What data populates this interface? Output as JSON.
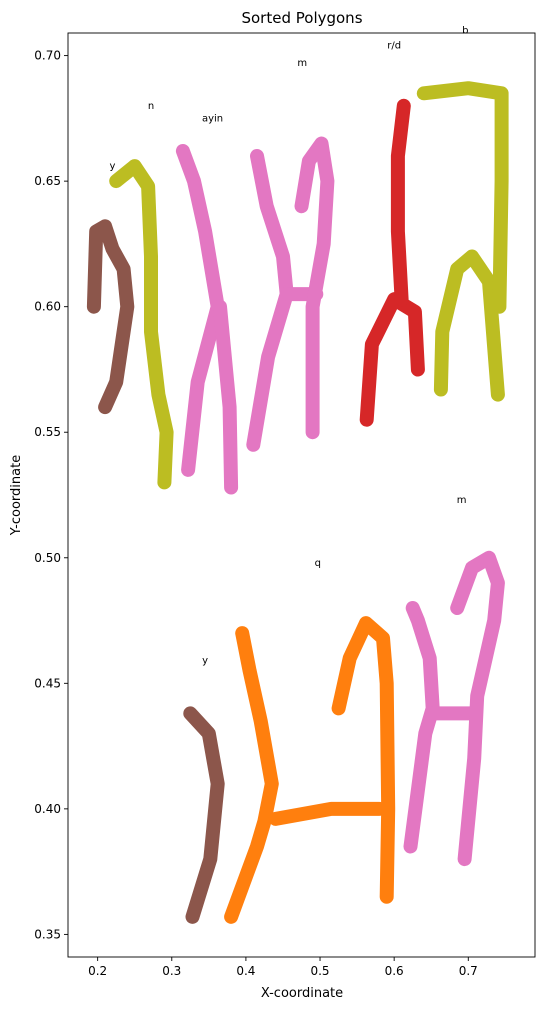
{
  "chart_data": {
    "type": "scatter",
    "title": "Sorted Polygons",
    "xlabel": "X-coordinate",
    "ylabel": "Y-coordinate",
    "xlim": [
      0.16,
      0.79
    ],
    "ylim": [
      0.709,
      0.341
    ],
    "y_inverted": true,
    "grid": false,
    "x_ticks": [
      0.2,
      0.3,
      0.4,
      0.5,
      0.6,
      0.7
    ],
    "x_tick_labels": [
      "0.2",
      "0.3",
      "0.4",
      "0.5",
      "0.6",
      "0.7"
    ],
    "y_ticks": [
      0.35,
      0.4,
      0.45,
      0.5,
      0.55,
      0.6,
      0.65,
      0.7
    ],
    "y_tick_labels": [
      "0.35",
      "0.40",
      "0.45",
      "0.50",
      "0.55",
      "0.60",
      "0.65",
      "0.70"
    ],
    "glyphs": [
      {
        "label": "y",
        "color": "#8c564b",
        "label_pos": [
          0.345,
          0.459
        ],
        "path": [
          [
            0.328,
            0.357
          ],
          [
            0.352,
            0.38
          ],
          [
            0.362,
            0.41
          ],
          [
            0.35,
            0.43
          ],
          [
            0.325,
            0.438
          ]
        ]
      },
      {
        "label": "q",
        "color": "#ff7f0e",
        "label_pos": [
          0.497,
          0.498
        ],
        "path": [
          [
            0.38,
            0.357
          ],
          [
            0.415,
            0.385
          ],
          [
            0.425,
            0.395
          ],
          [
            0.435,
            0.41
          ],
          [
            0.42,
            0.435
          ],
          [
            0.405,
            0.455
          ],
          [
            0.395,
            0.47
          ]
        ]
      },
      {
        "label": "q",
        "color": "#ff7f0e",
        "label_pos": null,
        "path": [
          [
            0.44,
            0.396
          ],
          [
            0.515,
            0.4
          ],
          [
            0.58,
            0.4
          ]
        ]
      },
      {
        "label": "q",
        "color": "#ff7f0e",
        "label_pos": null,
        "path": [
          [
            0.59,
            0.365
          ],
          [
            0.592,
            0.4
          ],
          [
            0.59,
            0.45
          ],
          [
            0.585,
            0.468
          ],
          [
            0.562,
            0.474
          ],
          [
            0.54,
            0.46
          ],
          [
            0.525,
            0.44
          ]
        ]
      },
      {
        "label": "m",
        "color": "#e377c2",
        "label_pos": [
          0.691,
          0.523
        ],
        "path": [
          [
            0.622,
            0.385
          ],
          [
            0.642,
            0.43
          ],
          [
            0.652,
            0.44
          ],
          [
            0.648,
            0.46
          ],
          [
            0.632,
            0.475
          ],
          [
            0.625,
            0.48
          ]
        ]
      },
      {
        "label": "m",
        "color": "#e377c2",
        "label_pos": null,
        "path": [
          [
            0.652,
            0.438
          ],
          [
            0.68,
            0.438
          ],
          [
            0.705,
            0.438
          ]
        ]
      },
      {
        "label": "m",
        "color": "#e377c2",
        "label_pos": null,
        "path": [
          [
            0.695,
            0.38
          ],
          [
            0.708,
            0.42
          ],
          [
            0.712,
            0.445
          ],
          [
            0.735,
            0.475
          ],
          [
            0.74,
            0.49
          ],
          [
            0.728,
            0.5
          ],
          [
            0.705,
            0.496
          ],
          [
            0.685,
            0.48
          ]
        ]
      },
      {
        "label": "y",
        "color": "#8c564b",
        "label_pos": [
          0.22,
          0.656
        ],
        "path": [
          [
            0.21,
            0.56
          ],
          [
            0.225,
            0.57
          ],
          [
            0.24,
            0.6
          ],
          [
            0.235,
            0.615
          ],
          [
            0.22,
            0.623
          ],
          [
            0.21,
            0.632
          ],
          [
            0.198,
            0.63
          ],
          [
            0.195,
            0.6
          ]
        ]
      },
      {
        "label": "n",
        "color": "#bcbd22",
        "label_pos": [
          0.272,
          0.68
        ],
        "path": [
          [
            0.29,
            0.53
          ],
          [
            0.293,
            0.55
          ],
          [
            0.282,
            0.565
          ],
          [
            0.272,
            0.59
          ],
          [
            0.272,
            0.62
          ],
          [
            0.268,
            0.648
          ],
          [
            0.25,
            0.656
          ],
          [
            0.225,
            0.65
          ]
        ]
      },
      {
        "label": "ayin",
        "color": "#e377c2",
        "label_pos": [
          0.355,
          0.675
        ],
        "path": [
          [
            0.322,
            0.535
          ],
          [
            0.335,
            0.57
          ],
          [
            0.362,
            0.6
          ],
          [
            0.345,
            0.63
          ],
          [
            0.33,
            0.65
          ],
          [
            0.315,
            0.662
          ]
        ]
      },
      {
        "label": "ayin",
        "color": "#e377c2",
        "label_pos": null,
        "path": [
          [
            0.38,
            0.528
          ],
          [
            0.378,
            0.56
          ],
          [
            0.365,
            0.6
          ]
        ]
      },
      {
        "label": "m",
        "color": "#e377c2",
        "label_pos": [
          0.476,
          0.697
        ],
        "path": [
          [
            0.41,
            0.545
          ],
          [
            0.43,
            0.58
          ],
          [
            0.455,
            0.605
          ],
          [
            0.45,
            0.62
          ],
          [
            0.428,
            0.64
          ],
          [
            0.415,
            0.66
          ]
        ]
      },
      {
        "label": "m",
        "color": "#e377c2",
        "label_pos": null,
        "path": [
          [
            0.455,
            0.605
          ],
          [
            0.48,
            0.605
          ],
          [
            0.495,
            0.605
          ]
        ]
      },
      {
        "label": "m",
        "color": "#e377c2",
        "label_pos": null,
        "path": [
          [
            0.49,
            0.55
          ],
          [
            0.49,
            0.6
          ],
          [
            0.505,
            0.625
          ],
          [
            0.51,
            0.65
          ],
          [
            0.502,
            0.665
          ],
          [
            0.485,
            0.658
          ],
          [
            0.475,
            0.64
          ]
        ]
      },
      {
        "label": "r/d",
        "color": "#d62728",
        "label_pos": [
          0.6,
          0.704
        ],
        "path": [
          [
            0.563,
            0.555
          ],
          [
            0.57,
            0.585
          ],
          [
            0.6,
            0.603
          ],
          [
            0.628,
            0.598
          ],
          [
            0.632,
            0.575
          ]
        ]
      },
      {
        "label": "r/d",
        "color": "#d62728",
        "label_pos": null,
        "path": [
          [
            0.61,
            0.603
          ],
          [
            0.605,
            0.63
          ],
          [
            0.605,
            0.66
          ],
          [
            0.613,
            0.68
          ]
        ]
      },
      {
        "label": "b",
        "color": "#bcbd22",
        "label_pos": [
          0.696,
          0.71
        ],
        "path": [
          [
            0.663,
            0.567
          ],
          [
            0.665,
            0.59
          ],
          [
            0.685,
            0.615
          ],
          [
            0.705,
            0.62
          ],
          [
            0.728,
            0.61
          ],
          [
            0.74,
            0.565
          ]
        ]
      },
      {
        "label": "b",
        "color": "#bcbd22",
        "label_pos": null,
        "path": [
          [
            0.742,
            0.6
          ],
          [
            0.745,
            0.65
          ],
          [
            0.745,
            0.685
          ],
          [
            0.7,
            0.687
          ],
          [
            0.64,
            0.685
          ]
        ]
      }
    ]
  }
}
